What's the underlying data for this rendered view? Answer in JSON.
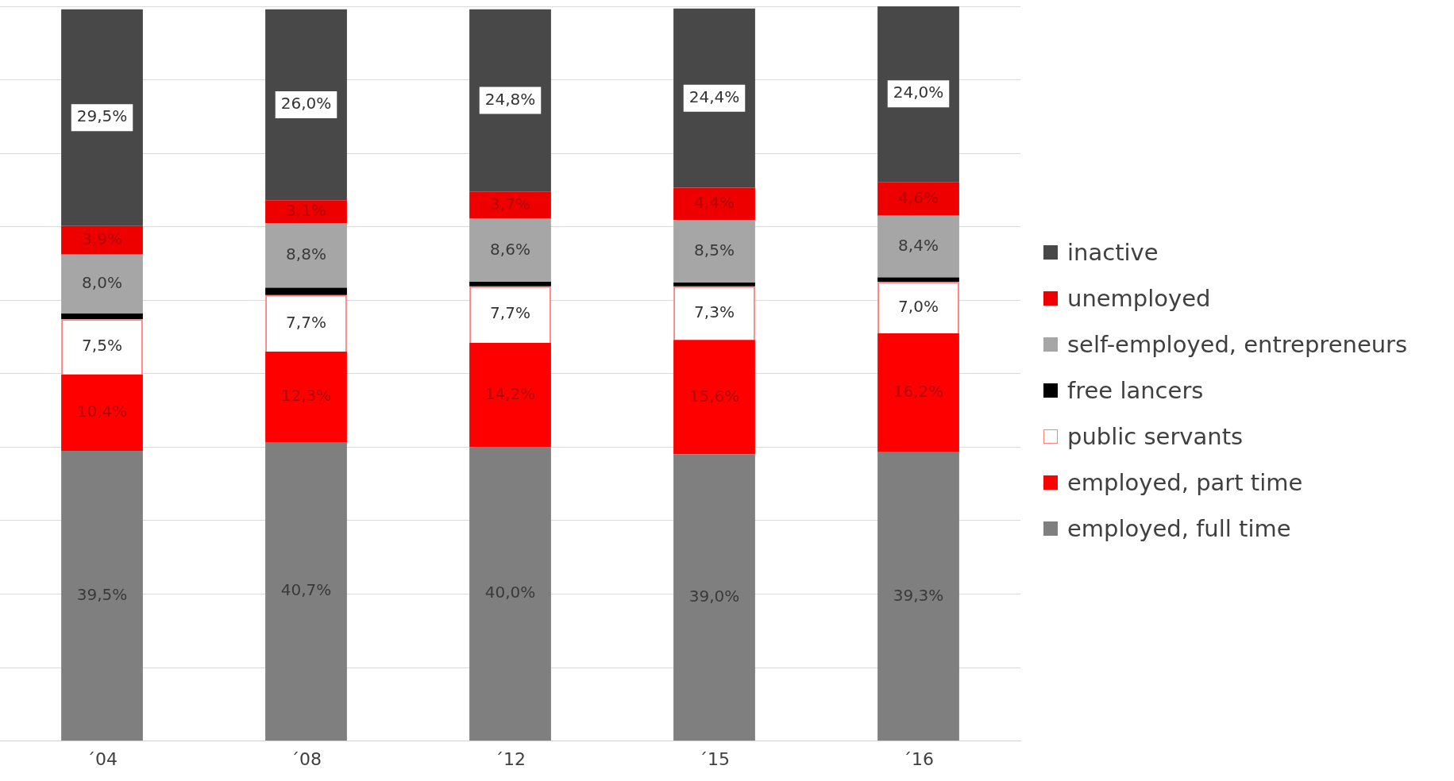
{
  "chart_data": {
    "type": "bar",
    "stacked": true,
    "categories": [
      "´04",
      "´08",
      "´12",
      "´15",
      "´16"
    ],
    "series": [
      {
        "name": "employed, full time",
        "color": "#7f7f7f",
        "values": [
          39.5,
          40.7,
          40.0,
          39.0,
          39.3
        ],
        "value_labels": [
          "39,5%",
          "40,7%",
          "40,0%",
          "39,0%",
          "39,3%"
        ]
      },
      {
        "name": "employed, part time",
        "color": "#ff0000",
        "values": [
          10.4,
          12.3,
          14.2,
          15.6,
          16.2
        ],
        "value_labels": [
          "10,4%",
          "12,3%",
          "14,2%",
          "15,6%",
          "16,2%"
        ]
      },
      {
        "name": "public servants",
        "color": "#ffffff",
        "values": [
          7.5,
          7.7,
          7.7,
          7.3,
          7.0
        ],
        "value_labels": [
          "7,5%",
          "7,7%",
          "7,7%",
          "7,3%",
          "7,0%"
        ]
      },
      {
        "name": "free lancers",
        "color": "#000000",
        "values": [
          0.8,
          1.0,
          0.6,
          0.5,
          0.6
        ],
        "value_labels": [
          null,
          null,
          null,
          null,
          null
        ]
      },
      {
        "name": "self-employed, entrepreneurs",
        "color": "#a6a6a6",
        "values": [
          8.0,
          8.8,
          8.6,
          8.5,
          8.4
        ],
        "value_labels": [
          "8,0%",
          "8,8%",
          "8,6%",
          "8,5%",
          "8,4%"
        ]
      },
      {
        "name": "unemployed",
        "color": "#ee0000",
        "values": [
          3.9,
          3.1,
          3.7,
          4.4,
          4.6
        ],
        "value_labels": [
          "3,9%",
          "3,1%",
          "3,7%",
          "4,4%",
          "4,6%"
        ]
      },
      {
        "name": "inactive",
        "color": "#484848",
        "values": [
          29.5,
          26.0,
          24.8,
          24.4,
          24.0
        ],
        "value_labels": [
          "29,5%",
          "26,0%",
          "24,8%",
          "24,4%",
          "24,0%"
        ]
      }
    ],
    "ylim": [
      0,
      100
    ],
    "yticks": [
      {
        "value": 0,
        "label": null
      },
      {
        "value": 10,
        "label": null
      },
      {
        "value": 20,
        "label": null
      },
      {
        "value": 30,
        "label": null
      },
      {
        "value": 40,
        "label": null
      },
      {
        "value": 50,
        "label": null
      },
      {
        "value": 60,
        "label": null
      },
      {
        "value": 70,
        "label": null
      },
      {
        "value": 80,
        "label": null
      },
      {
        "value": 90,
        "label": null
      },
      {
        "value": 100,
        "label": null
      }
    ],
    "tick_labels": "x",
    "grid": "y",
    "legend": "right"
  }
}
